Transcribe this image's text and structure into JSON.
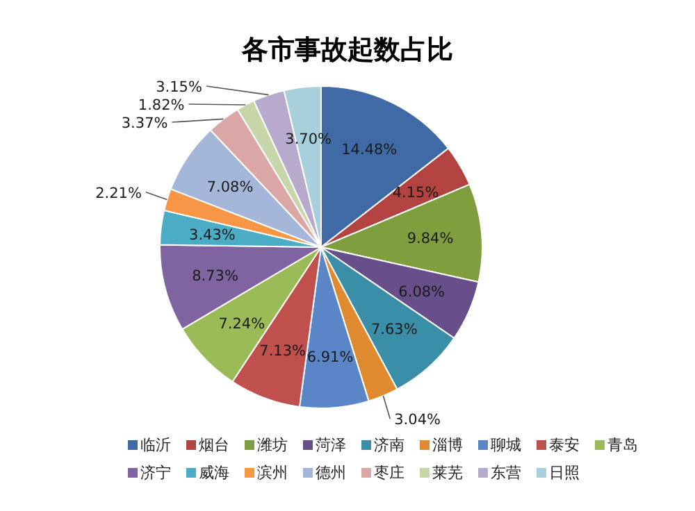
{
  "chart_data": {
    "type": "pie",
    "title": "各市事故起数占比",
    "categories": [
      "临沂",
      "烟台",
      "潍坊",
      "菏泽",
      "济南",
      "淄博",
      "聊城",
      "泰安",
      "青岛",
      "济宁",
      "威海",
      "滨州",
      "德州",
      "枣庄",
      "莱芜",
      "东营",
      "日照"
    ],
    "values": [
      14.48,
      4.15,
      9.84,
      6.08,
      7.63,
      3.04,
      6.91,
      7.13,
      7.24,
      8.73,
      3.43,
      2.21,
      7.08,
      3.37,
      1.82,
      3.15,
      3.7
    ],
    "value_labels": [
      "14.48%",
      "4.15%",
      "9.84%",
      "6.08%",
      "7.63%",
      "3.04%",
      "6.91%",
      "7.13%",
      "7.24%",
      "8.73%",
      "3.43%",
      "2.21%",
      "7.08%",
      "3.37%",
      "1.82%",
      "3.15%",
      "3.70%"
    ],
    "colors": [
      "#3f6aa5",
      "#b34341",
      "#7f9e3e",
      "#684f8c",
      "#3a8ea8",
      "#df8a2e",
      "#5a86c8",
      "#c0504d",
      "#9bbb59",
      "#8064a2",
      "#4bacc6",
      "#f79646",
      "#a5b7d8",
      "#dba7a6",
      "#c6d6a8",
      "#b8aacc",
      "#a8d0dc"
    ],
    "legend": "bottom"
  }
}
